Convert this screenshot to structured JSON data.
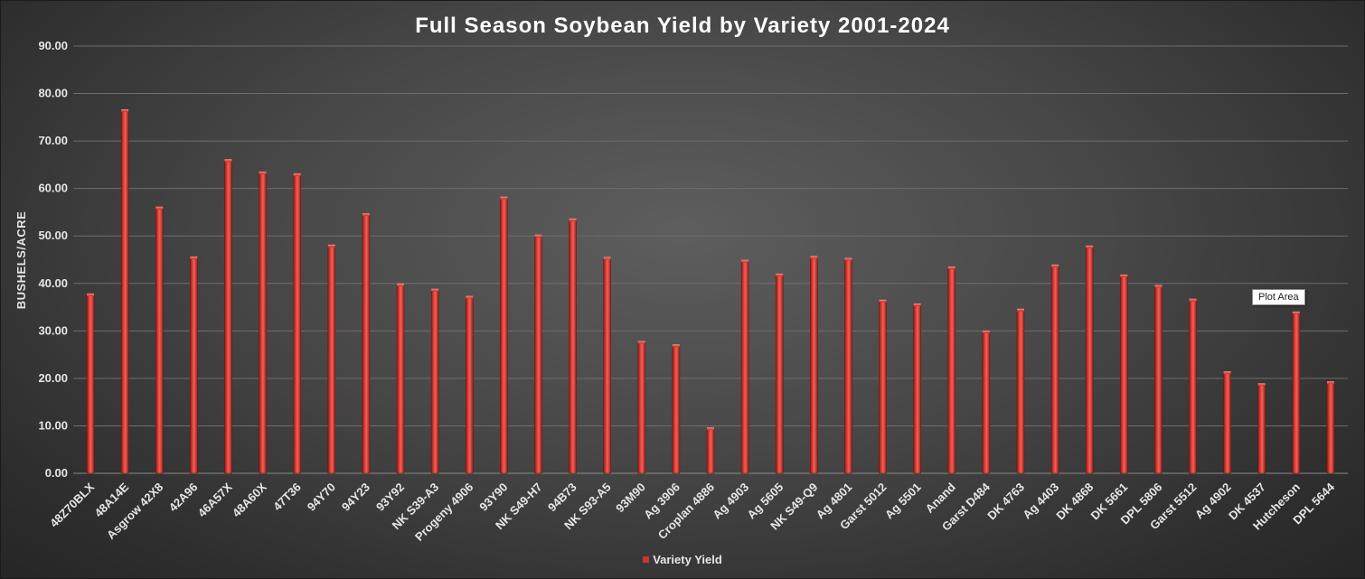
{
  "chart_data": {
    "type": "bar",
    "title": "Full Season Soybean Yield by Variety 2001-2024",
    "xlabel": "",
    "ylabel": "BUSHELS/ACRE",
    "ylim": [
      0,
      90
    ],
    "yticks": [
      "0.00",
      "10.00",
      "20.00",
      "30.00",
      "40.00",
      "50.00",
      "60.00",
      "70.00",
      "80.00",
      "90.00"
    ],
    "grid": true,
    "legend_position": "bottom",
    "bar_color": "#d0342c",
    "categories": [
      "48Z70BLX",
      "48A14E",
      "Asgrow 42X8",
      "42A96",
      "46A57X",
      "48A60X",
      "47T36",
      "94Y70",
      "94Y23",
      "93Y92",
      "NK S39-A3",
      "Progeny 4906",
      "93Y90",
      "NK S49-H7",
      "94B73",
      "NK S93-A5",
      "93M90",
      "Ag 3906",
      "Croplan 4886",
      "Ag 4903",
      "Ag 5605",
      "NK S49-Q9",
      "Ag 4801",
      "Garst 5012",
      "Ag 5501",
      "Anand",
      "Garst D484",
      "DK 4763",
      "Ag 4403",
      "DK 4868",
      "DK 5661",
      "DPL 5806",
      "Garst 5512",
      "Ag 4902",
      "DK 4537",
      "Hutcheson",
      "DPL 5644"
    ],
    "series": [
      {
        "name": "Variety Yield",
        "values": [
          37.5,
          76.3,
          55.8,
          45.3,
          65.8,
          63.2,
          62.8,
          47.8,
          54.4,
          39.6,
          38.5,
          37.0,
          57.9,
          49.9,
          53.3,
          45.2,
          27.5,
          26.8,
          9.3,
          44.6,
          41.7,
          45.4,
          45.0,
          36.2,
          35.4,
          43.2,
          29.7,
          34.3,
          43.6,
          47.6,
          41.5,
          39.3,
          36.4,
          21.1,
          18.6,
          33.7,
          19.0
        ]
      }
    ]
  },
  "tooltip": {
    "text": "Plot Area"
  }
}
